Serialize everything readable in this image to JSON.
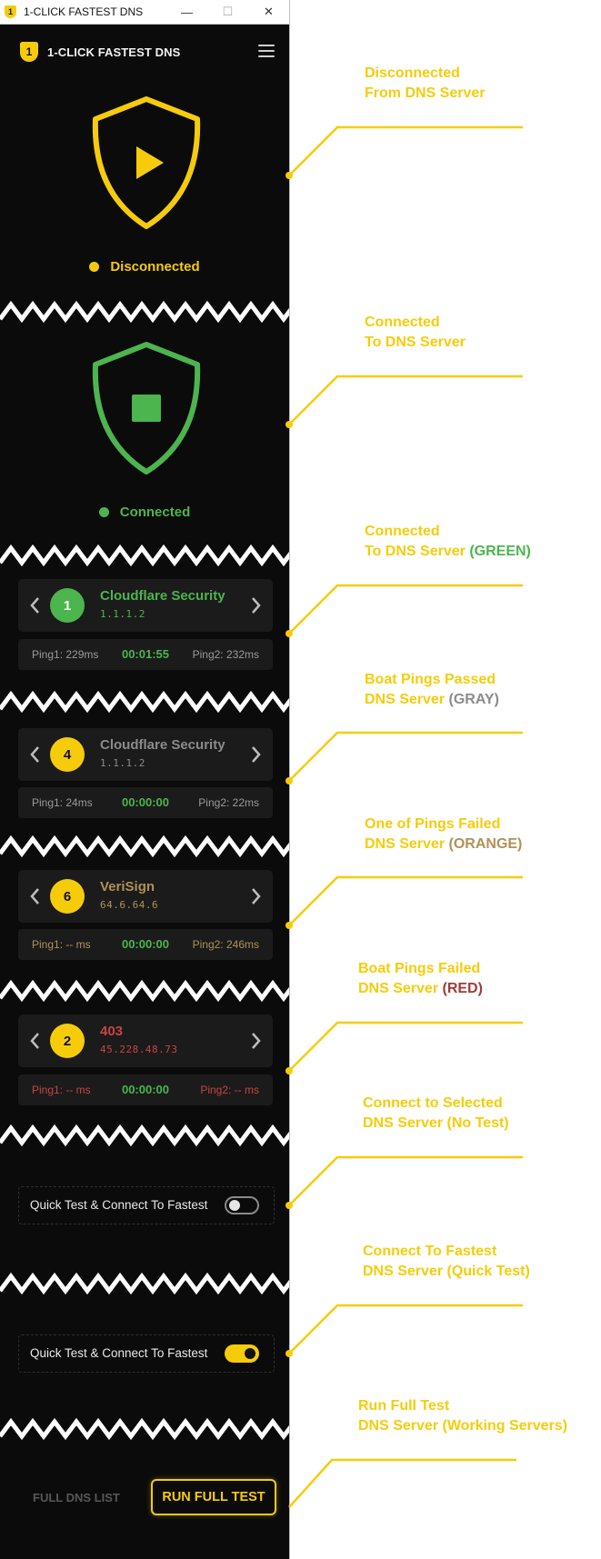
{
  "window": {
    "title": "1-CLICK FASTEST DNS",
    "app_badge": "1",
    "minimize_glyph": "—",
    "maximize_glyph": "☐",
    "close_glyph": "✕"
  },
  "header": {
    "logo_text": "1",
    "title": "1-CLICK FASTEST DNS",
    "menu_icon": "hamburger-icon"
  },
  "colors": {
    "yellow": "#f6cc0a",
    "green": "#4cb54e",
    "gray": "#8b8b8b",
    "orange": "#b09158",
    "red": "#c0392b",
    "bg": "#0b0b0b",
    "card": "#1b1b1b"
  },
  "states": {
    "disconnected": {
      "label": "Disconnected",
      "icon": "play-icon"
    },
    "connected": {
      "label": "Connected",
      "icon": "stop-icon"
    }
  },
  "servers": [
    {
      "index": "1",
      "name": "Cloudflare Security",
      "ip": "1.1.1.2",
      "ping1": "Ping1: 229ms",
      "timer": "00:01:55",
      "ping2": "Ping2: 232ms",
      "state": "green"
    },
    {
      "index": "4",
      "name": "Cloudflare Security",
      "ip": "1.1.1.2",
      "ping1": "Ping1: 24ms",
      "timer": "00:00:00",
      "ping2": "Ping2: 22ms",
      "state": "gray"
    },
    {
      "index": "6",
      "name": "VeriSign",
      "ip": "64.6.64.6",
      "ping1": "Ping1: -- ms",
      "timer": "00:00:00",
      "ping2": "Ping2: 246ms",
      "state": "orange"
    },
    {
      "index": "2",
      "name": "403",
      "ip": "45.228.48.73",
      "ping1": "Ping1: -- ms",
      "timer": "00:00:00",
      "ping2": "Ping2: -- ms",
      "state": "red"
    }
  ],
  "toggles": [
    {
      "label": "Quick Test & Connect To Fastest",
      "on": false
    },
    {
      "label": "Quick Test & Connect To Fastest",
      "on": true
    }
  ],
  "footer": {
    "list_label": "FULL DNS LIST",
    "run_label": "RUN FULL TEST"
  },
  "annotations": [
    {
      "line1": "Disconnected",
      "line2": "From DNS Server",
      "suffix": ""
    },
    {
      "line1": "Connected",
      "line2": "To DNS Server",
      "suffix": ""
    },
    {
      "line1": "Connected",
      "line2": "To DNS Server",
      "suffix": "(GREEN)"
    },
    {
      "line1": "Boat Pings Passed",
      "line2": "DNS Server",
      "suffix": "(GRAY)"
    },
    {
      "line1": "One of Pings Failed",
      "line2": "DNS Server",
      "suffix": "(ORANGE)"
    },
    {
      "line1": "Boat Pings Failed",
      "line2": "DNS Server",
      "suffix": "(RED)"
    },
    {
      "line1": "Connect to Selected",
      "line2": "DNS Server (No Test)",
      "suffix": ""
    },
    {
      "line1": "Connect To Fastest",
      "line2": "DNS Server (Quick Test)",
      "suffix": ""
    },
    {
      "line1": "Run Full Test",
      "line2": "DNS Server (Working Servers)",
      "suffix": ""
    }
  ]
}
